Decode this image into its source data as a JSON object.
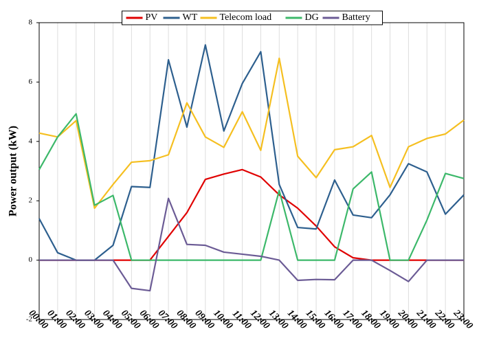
{
  "chart_data": {
    "type": "line",
    "y_label": "Power output (kW)",
    "categories": [
      "00:00",
      "01:00",
      "02:00",
      "03:00",
      "04:00",
      "05:00",
      "06:00",
      "07:00",
      "08:00",
      "09:00",
      "10:00",
      "11:00",
      "12:00",
      "13:00",
      "14:00",
      "15:00",
      "16:00",
      "17:00",
      "18:00",
      "19:00",
      "20:00",
      "21:00",
      "22:00",
      "23:00"
    ],
    "series": [
      {
        "name": "PV",
        "color": "#e00000",
        "values": [
          0,
          0,
          0,
          0,
          0,
          0,
          0,
          0.8,
          1.6,
          2.72,
          2.9,
          3.05,
          2.8,
          2.2,
          1.75,
          1.15,
          0.45,
          0.08,
          0,
          0,
          0,
          0,
          0,
          0
        ]
      },
      {
        "name": "WT",
        "color": "#2d5f8e",
        "values": [
          1.4,
          0.25,
          0,
          0,
          0.5,
          2.48,
          2.45,
          6.75,
          4.48,
          7.25,
          4.35,
          5.95,
          7.02,
          2.55,
          1.1,
          1.05,
          2.7,
          1.52,
          1.43,
          2.2,
          3.25,
          2.97,
          1.55,
          2.2
        ]
      },
      {
        "name": "Telecom load",
        "color": "#f5bf20",
        "values": [
          4.28,
          4.15,
          4.7,
          1.75,
          2.55,
          3.3,
          3.35,
          3.55,
          5.3,
          4.15,
          3.8,
          5.0,
          3.7,
          6.8,
          3.5,
          2.78,
          3.72,
          3.82,
          4.2,
          2.45,
          3.82,
          4.1,
          4.25,
          4.72
        ]
      },
      {
        "name": "DG",
        "color": "#3cb86a",
        "values": [
          3.05,
          4.15,
          4.93,
          1.85,
          2.18,
          0,
          0,
          0,
          0,
          0,
          0,
          0,
          0,
          2.35,
          0,
          0,
          0,
          2.4,
          2.97,
          0,
          0,
          1.35,
          2.92,
          2.75
        ]
      },
      {
        "name": "Battery",
        "color": "#6b5b95",
        "values": [
          0,
          0,
          0,
          0,
          0,
          -0.95,
          -1.03,
          2.08,
          0.53,
          0.5,
          0.27,
          0.2,
          0.13,
          0,
          -0.68,
          -0.65,
          -0.66,
          0,
          0,
          -0.35,
          -0.72,
          0,
          0,
          0
        ]
      }
    ],
    "ylim": [
      -2,
      8
    ],
    "yticks": [
      -2,
      0,
      2,
      4,
      6,
      8
    ],
    "grid": true,
    "legend": "top"
  }
}
